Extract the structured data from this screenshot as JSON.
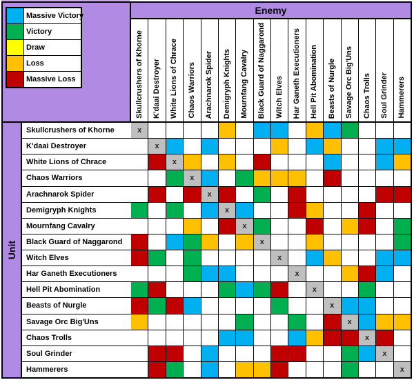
{
  "colors": {
    "massive_victory": "#00B0F0",
    "victory": "#00B050",
    "draw": "#FFFF00",
    "loss": "#FFC000",
    "massive_loss": "#C00000",
    "diagonal": "#BFBFBF",
    "none": "#FFFFFF",
    "purple": "#B18BE3",
    "purple_light": "#CDA9F0"
  },
  "legend": {
    "items": [
      {
        "key": "massive_victory",
        "label": "Massive Victory"
      },
      {
        "key": "victory",
        "label": "Victory"
      },
      {
        "key": "draw",
        "label": "Draw"
      },
      {
        "key": "loss",
        "label": "Loss"
      },
      {
        "key": "massive_loss",
        "label": "Massive Loss"
      }
    ]
  },
  "table": {
    "enemy_header": "Enemy",
    "unit_header": "Unit",
    "diagonal_marker": "x"
  },
  "chart_data": {
    "type": "heatmap",
    "title": "Unit vs Enemy matchup results",
    "legend_position": "top-left",
    "value_codes": {
      "C": "Massive Victory",
      "G": "Victory",
      "Y": "Draw",
      "O": "Loss",
      "R": "Massive Loss",
      "W": "none",
      "X": "same unit (diagonal)"
    },
    "x_categories": [
      "Skullcrushers of Khorne",
      "K'daai Destroyer",
      "White Lions of Chrace",
      "Chaos Warriors",
      "Arachnarok Spider",
      "Demigryph Knights",
      "Mournfang Cavalry",
      "Black Guard of Naggarond",
      "Witch Elves",
      "Har Ganeth Executioners",
      "Hell Pit Abomination",
      "Beasts of Nurgle",
      "Savage Orc Big'Uns",
      "Chaos Trolls",
      "Soul Grinder",
      "Hammerers"
    ],
    "y_categories": [
      "Skullcrushers of Khorne",
      "K'daai Destroyer",
      "White Lions of Chrace",
      "Chaos Warriors",
      "Arachnarok Spider",
      "Demigryph Knights",
      "Mournfang Cavalry",
      "Black Guard of Naggarond",
      "Witch Elves",
      "Har Ganeth Executioners",
      "Hell Pit Abomination",
      "Beasts of Nurgle",
      "Savage Orc Big'Uns",
      "Chaos Trolls",
      "Soul Grinder",
      "Hammerers"
    ],
    "values": [
      "XWWWWOWCCWOCGWWW",
      "WXCWCWWWOWCOWWCC",
      "WRXOWOWRWWWCWWCO",
      "WWGXCWGOOOWRWWWW",
      "WRWRXRWGWRWWWWRR",
      "GWGWCXCWWROWWRWW",
      "WWWOWRXGWWRWORWG",
      "RWCGOWOXWWOWWWWG",
      "RGWGWWWWXWCOWWCC",
      "WWWGCCWWWXWWORCW",
      "GRWWWGCGRWXWWGWW",
      "RGRCWWWWGWWXCCWW",
      "OWWWWWGWWGWRXCOO",
      "WWWWWCCWWCORRXRW",
      "WRRWCWWWRRWWGCXW",
      "WRGWCWOORWWWGWWX"
    ]
  }
}
